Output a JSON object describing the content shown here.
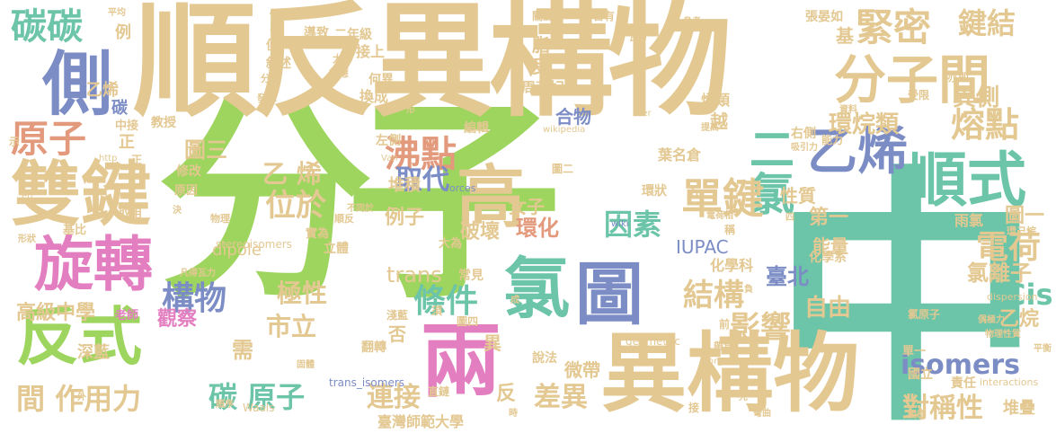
{
  "cloud": {
    "words": [
      {
        "text": "分子",
        "color": "#9ED55E"
      },
      {
        "text": "中",
        "color": "#6CC5A8"
      },
      {
        "text": "順反異構物",
        "color": "#E3C892"
      },
      {
        "text": "異構物",
        "color": "#E3C892"
      },
      {
        "text": "雙鍵",
        "color": "#E3C892"
      },
      {
        "text": "兩",
        "color": "#E37FC0"
      },
      {
        "text": "高",
        "color": "#E3C892"
      },
      {
        "text": "圖",
        "color": "#7C8DC6"
      },
      {
        "text": "氯",
        "color": "#6CC5A8"
      },
      {
        "text": "反式",
        "color": "#9ED55E"
      },
      {
        "text": "旋轉",
        "color": "#E37FC0"
      },
      {
        "text": "順式",
        "color": "#6CC5A8"
      },
      {
        "text": "分子間",
        "color": "#E3C892"
      },
      {
        "text": "乙烯",
        "color": "#7C8DC6"
      },
      {
        "text": "側",
        "color": "#7C8DC6"
      },
      {
        "text": "碳碳",
        "color": "#6CC5A8"
      },
      {
        "text": "緊密",
        "color": "#E3C892"
      },
      {
        "text": "鍵結",
        "color": "#E3C892"
      },
      {
        "text": "二氯",
        "color": "#6CC5A8"
      },
      {
        "text": "單鍵",
        "color": "#E3C892"
      },
      {
        "text": "原子",
        "color": "#E39A7C"
      },
      {
        "text": "沸點",
        "color": "#E39A7C"
      },
      {
        "text": "熔點",
        "color": "#E3C892"
      },
      {
        "text": "位於",
        "color": "#E3C892"
      },
      {
        "text": "條件",
        "color": "#6CC5A8"
      },
      {
        "text": "構物",
        "color": "#7C8DC6"
      },
      {
        "text": "結構",
        "color": "#E3C892"
      },
      {
        "text": "影響",
        "color": "#E3C892"
      },
      {
        "text": "電荷",
        "color": "#E3C892"
      },
      {
        "text": "isomers",
        "color": "#7C8DC6"
      },
      {
        "text": "Cis",
        "color": "#6CC5A8"
      },
      {
        "text": "因素",
        "color": "#6CC5A8"
      },
      {
        "text": "取代",
        "color": "#7C8DC6"
      },
      {
        "text": "間 作用力",
        "color": "#E3C892"
      },
      {
        "text": "碳 原子",
        "color": "#6CC5A8"
      },
      {
        "text": "連接",
        "color": "#E3C892"
      },
      {
        "text": "差異",
        "color": "#E3C892"
      },
      {
        "text": "對稱性",
        "color": "#E3C892"
      },
      {
        "text": "極性",
        "color": "#E3C892"
      },
      {
        "text": "市立",
        "color": "#E3C892"
      },
      {
        "text": "自由",
        "color": "#E3C892"
      },
      {
        "text": "臺北",
        "color": "#7C8DC6"
      },
      {
        "text": "環烷類",
        "color": "#E3C892"
      },
      {
        "text": "異側",
        "color": "#E3C892"
      },
      {
        "text": "氯離子",
        "color": "#E3C892"
      },
      {
        "text": "乙烷",
        "color": "#E3C892"
      },
      {
        "text": "堆疊",
        "color": "#E3C892"
      },
      {
        "text": "乙 烯",
        "color": "#E3C892"
      },
      {
        "text": "圖三",
        "color": "#E3C892"
      },
      {
        "text": "例子",
        "color": "#E3C892"
      },
      {
        "text": "堆積",
        "color": "#E3C892"
      },
      {
        "text": "破壞",
        "color": "#E3C892"
      },
      {
        "text": "環化",
        "color": "#E39A7C"
      },
      {
        "text": "女子",
        "color": "#E3C892"
      },
      {
        "text": "第一",
        "color": "#E3C892"
      },
      {
        "text": "能量",
        "color": "#E3C892"
      },
      {
        "text": "雨氯",
        "color": "#E3C892"
      },
      {
        "text": "圖一",
        "color": "#E3C892"
      },
      {
        "text": "合物",
        "color": "#7C8DC6"
      },
      {
        "text": "dipole",
        "color": "#E3C892"
      },
      {
        "text": "trans",
        "color": "#E3C892"
      },
      {
        "text": "IUPAC",
        "color": "#7C8DC6"
      },
      {
        "text": "高級中學",
        "color": "#E3C892"
      },
      {
        "text": "觀察",
        "color": "#E37FC0"
      },
      {
        "text": "需",
        "color": "#E3C892"
      },
      {
        "text": "異",
        "color": "#E3C892"
      },
      {
        "text": "反",
        "color": "#E3C892"
      },
      {
        "text": "否",
        "color": "#E3C892"
      },
      {
        "text": "微帶",
        "color": "#E3C892"
      },
      {
        "text": "臺灣師範大學",
        "color": "#E3C892"
      },
      {
        "text": "說法",
        "color": "#E3C892"
      },
      {
        "text": "翻轉",
        "color": "#E3C892"
      },
      {
        "text": "深藍",
        "color": "#E3C892"
      },
      {
        "text": "老師",
        "color": "#E37FC0"
      },
      {
        "text": "化學科",
        "color": "#E3C892"
      },
      {
        "text": "化學系",
        "color": "#E3C892"
      },
      {
        "text": "常見",
        "color": "#E3C892"
      },
      {
        "text": "大為",
        "color": "#E3C892"
      },
      {
        "text": "性質",
        "color": "#E3C892"
      },
      {
        "text": "葉名倉",
        "color": "#E3C892"
      },
      {
        "text": "越",
        "color": "#E3C892"
      },
      {
        "text": "烯類",
        "color": "#E3C892"
      },
      {
        "text": "周芳妃",
        "color": "#E3C892"
      },
      {
        "text": "換成",
        "color": "#E3C892"
      },
      {
        "text": "何異",
        "color": "#E3C892"
      },
      {
        "text": "接上",
        "color": "#E3C892"
      },
      {
        "text": "導致",
        "color": "#E3C892"
      },
      {
        "text": "二年級",
        "color": "#E3C892"
      },
      {
        "text": "張晏如",
        "color": "#E3C892"
      },
      {
        "text": "基",
        "color": "#E3C892"
      },
      {
        "text": "脂",
        "color": "#E3C892"
      },
      {
        "text": "受",
        "color": "#E3C892"
      },
      {
        "text": "例",
        "color": "#E3C892"
      },
      {
        "text": "乙烯",
        "color": "#E3C892"
      },
      {
        "text": "碳",
        "color": "#7C8DC6"
      },
      {
        "text": "正",
        "color": "#E3C892"
      },
      {
        "text": "教授",
        "color": "#E3C892"
      },
      {
        "text": "中接",
        "color": "#E3C892"
      },
      {
        "text": "修改",
        "color": "#E3C892"
      },
      {
        "text": "原因",
        "color": "#E3C892"
      },
      {
        "text": "取用",
        "color": "#E3C892"
      },
      {
        "text": "基比",
        "color": "#E3C892"
      },
      {
        "text": "實為",
        "color": "#E3C892"
      },
      {
        "text": "立體",
        "color": "#E3C892"
      },
      {
        "text": "stereoisomers",
        "color": "#E3C892"
      },
      {
        "text": "左側",
        "color": "#E3C892"
      },
      {
        "text": "編輯",
        "color": "#E3C892"
      },
      {
        "text": "五",
        "color": "#E3C892"
      },
      {
        "text": "環狀",
        "color": "#E3C892"
      },
      {
        "text": "右側",
        "color": "#E3C892"
      },
      {
        "text": "國立",
        "color": "#E3C892"
      },
      {
        "text": "責任",
        "color": "#E3C892"
      },
      {
        "text": "單一",
        "color": "#E3C892"
      },
      {
        "text": "geometric",
        "color": "#E3C892"
      },
      {
        "text": "trans_isomers",
        "color": "#7C8DC6"
      },
      {
        "text": "forces",
        "color": "#7C8DC6"
      },
      {
        "text": "氯原子",
        "color": "#E3C892"
      },
      {
        "text": "環己烷",
        "color": "#E3C892"
      },
      {
        "text": "受限",
        "color": "#E3C892"
      },
      {
        "text": "亦即",
        "color": "#E3C892"
      },
      {
        "text": "能力",
        "color": "#E3C892"
      },
      {
        "text": "直鏈",
        "color": "#E3C892"
      },
      {
        "text": "淺藍",
        "color": "#E3C892"
      },
      {
        "text": "圖四",
        "color": "#E3C892"
      },
      {
        "text": "圖二",
        "color": "#E3C892"
      },
      {
        "text": "順反",
        "color": "#E3C892"
      },
      {
        "text": "物理",
        "color": "#E3C892"
      },
      {
        "text": "大小",
        "color": "#E3C892"
      },
      {
        "text": "效應",
        "color": "#E3C892"
      },
      {
        "text": "發揮",
        "color": "#E3C892"
      },
      {
        "text": "分布",
        "color": "#E3C892"
      },
      {
        "text": "關鍵",
        "color": "#E3C892"
      },
      {
        "text": "瓦力",
        "color": "#E3C892"
      },
      {
        "text": "敘述",
        "color": "#E3C892"
      },
      {
        "text": "便",
        "color": "#E3C892"
      },
      {
        "text": "wikipedia",
        "color": "#E3C892"
      },
      {
        "text": "Waals",
        "color": "#E3C892"
      },
      {
        "text": "interactions",
        "color": "#E3C892"
      },
      {
        "text": "dispersion",
        "color": "#E3C892"
      },
      {
        "text": "物理性質",
        "color": "#E3C892"
      },
      {
        "text": "偶極力",
        "color": "#E3C892"
      },
      {
        "text": "吸引力",
        "color": "#E3C892"
      },
      {
        "text": "提高",
        "color": "#E3C892"
      },
      {
        "text": "平衡",
        "color": "#E3C892"
      },
      {
        "text": "參考",
        "color": "#E3C892"
      },
      {
        "text": "平均",
        "color": "#E3C892"
      },
      {
        "text": "資料",
        "color": "#E3C892"
      },
      {
        "text": "電荷相",
        "color": "#E3C892"
      },
      {
        "text": "帶負",
        "color": "#E3C892"
      },
      {
        "text": "先",
        "color": "#E3C892"
      },
      {
        "text": "前",
        "color": "#E3C892"
      },
      {
        "text": "固態",
        "color": "#E3C892"
      },
      {
        "text": "彎曲",
        "color": "#E3C892"
      },
      {
        "text": "凡得瓦力",
        "color": "#E3C892"
      },
      {
        "text": "須",
        "color": "#E3C892"
      },
      {
        "text": "含有",
        "color": "#E3C892"
      },
      {
        "text": "低",
        "color": "#E3C892"
      },
      {
        "text": "呈",
        "color": "#E3C892"
      },
      {
        "text": "形狀",
        "color": "#E3C892"
      },
      {
        "text": "示",
        "color": "#E3C892"
      },
      {
        "text": "固體",
        "color": "#E3C892"
      },
      {
        "text": "順序",
        "color": "#E3C892"
      },
      {
        "text": "不同於",
        "color": "#E3C892"
      },
      {
        "text": "稱",
        "color": "#E3C892"
      },
      {
        "text": "四",
        "color": "#E3C892"
      },
      {
        "text": "http",
        "color": "#E3C892"
      },
      {
        "text": "Van",
        "color": "#E3C892"
      },
      {
        "text": "wiki",
        "color": "#7C8DC6"
      },
      {
        "text": "der",
        "color": "#E3C892"
      },
      {
        "text": "org",
        "color": "#E3C892"
      },
      {
        "text": "en",
        "color": "#E3C892"
      },
      {
        "text": "U",
        "color": "#E3C892"
      },
      {
        "text": "形",
        "color": "#E3C892"
      },
      {
        "text": "成",
        "color": "#E3C892"
      },
      {
        "text": "負",
        "color": "#E3C892"
      },
      {
        "text": "接",
        "color": "#E3C892"
      },
      {
        "text": "外",
        "color": "#E3C892"
      },
      {
        "text": "決",
        "color": "#E3C892"
      },
      {
        "text": "時",
        "color": "#E3C892"
      },
      {
        "text": "正",
        "color": "#E3C892"
      }
    ]
  }
}
